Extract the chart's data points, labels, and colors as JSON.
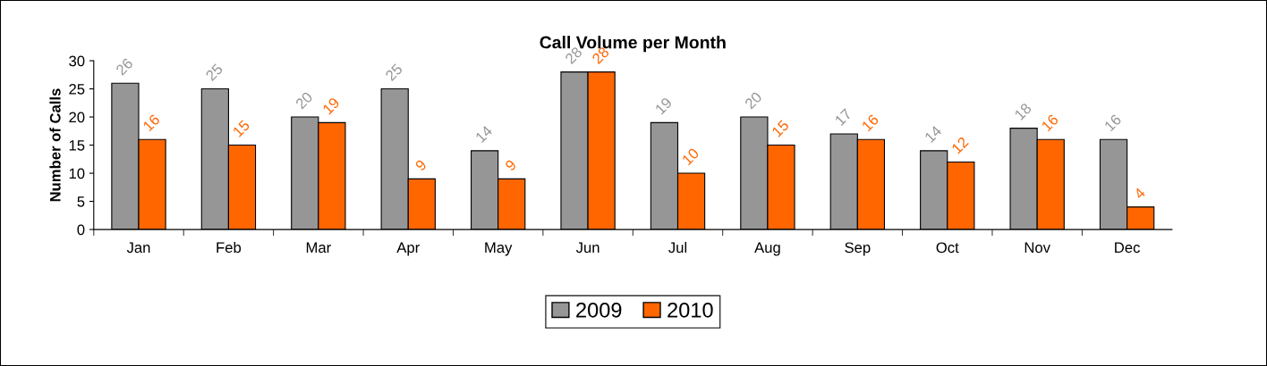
{
  "chart_data": {
    "type": "bar",
    "title": "Call Volume per Month",
    "ylabel": "Number of Calls",
    "categories": [
      "Jan",
      "Feb",
      "Mar",
      "Apr",
      "May",
      "Jun",
      "Jul",
      "Aug",
      "Sep",
      "Oct",
      "Nov",
      "Dec"
    ],
    "series": [
      {
        "name": "2009",
        "color": "#969696",
        "values": [
          26,
          25,
          20,
          25,
          14,
          28,
          19,
          20,
          17,
          14,
          18,
          16
        ]
      },
      {
        "name": "2010",
        "color": "#ff6600",
        "values": [
          16,
          15,
          19,
          9,
          9,
          28,
          10,
          15,
          16,
          12,
          16,
          4
        ]
      }
    ],
    "ylim": [
      0,
      30
    ],
    "yticks": [
      0,
      5,
      10,
      15,
      20,
      25,
      30
    ],
    "data_labels": true,
    "legend": "bottom",
    "grid": false
  }
}
